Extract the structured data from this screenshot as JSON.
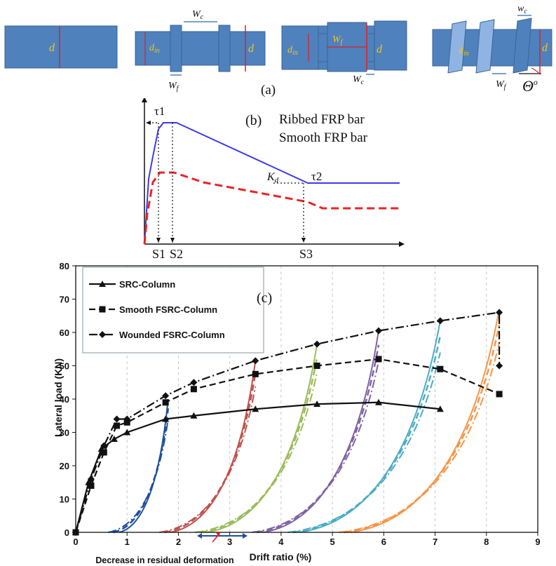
{
  "panel_a": {
    "caption": "(a)",
    "labels": {
      "d": "d",
      "din": "d",
      "din_sub": "in",
      "wc": "W",
      "wc_sub": "c",
      "wf": "W",
      "wf_sub": "f",
      "wc_lower": "w",
      "theta": "Θ",
      "theta_sup": "o"
    }
  },
  "panel_b": {
    "caption": "(b)",
    "legend": [
      "Ribbed FRP bar",
      "Smooth FRP bar"
    ],
    "tau1": "τ1",
    "tau2": "τ2",
    "kd": "K",
    "kd_sub": "d",
    "s_labels": [
      "S1",
      "S2",
      "S3"
    ]
  },
  "chart_data": {
    "type": "line",
    "panel_label": "(c)",
    "xlabel": "Drift ratio (%)",
    "ylabel": "Lateral load (KN)",
    "xlim": [
      0,
      9
    ],
    "ylim": [
      0,
      80
    ],
    "x_ticks": [
      "0",
      "1",
      "2",
      "3",
      "4",
      "5",
      "6",
      "7",
      "8",
      "9"
    ],
    "y_ticks": [
      "0",
      "10",
      "20",
      "30",
      "40",
      "50",
      "60",
      "70",
      "80"
    ],
    "grid": "vertical dashed",
    "legend_position": "top-left",
    "annotation": "Decrease in residual deformation",
    "series": [
      {
        "name": "SRC-Column",
        "marker": "triangle",
        "style": "solid",
        "x": [
          0,
          0.25,
          0.5,
          0.75,
          1.0,
          1.75,
          2.3,
          3.5,
          4.7,
          5.9,
          7.1
        ],
        "y": [
          0,
          15,
          25,
          28,
          30,
          34,
          35,
          37,
          38.5,
          39,
          37
        ]
      },
      {
        "name": "Smooth FSRC-Column",
        "marker": "square",
        "style": "dashed",
        "x": [
          0,
          0.3,
          0.55,
          0.8,
          1.0,
          1.75,
          2.3,
          3.5,
          4.7,
          5.9,
          7.1,
          8.25
        ],
        "y": [
          0,
          14,
          24,
          32,
          33,
          39,
          43,
          47.5,
          50,
          52,
          49,
          41.5
        ]
      },
      {
        "name": "Wounded FSRC-Column",
        "marker": "diamond",
        "style": "dash-dot",
        "x": [
          0,
          0.3,
          0.55,
          0.8,
          1.0,
          1.75,
          2.3,
          3.5,
          4.7,
          5.9,
          7.1,
          8.25,
          8.25
        ],
        "y": [
          0,
          16,
          26,
          34,
          34,
          41,
          45,
          51.5,
          56.5,
          60.5,
          63.5,
          66,
          50
        ]
      }
    ],
    "unloading_loops": [
      {
        "color": "#1f4e9c",
        "peak_x": 1.8,
        "peak_y": 40,
        "residual_x": 0.6
      },
      {
        "color": "#c0504d",
        "peak_x": 3.5,
        "peak_y": 51.5,
        "residual_x": 1.6
      },
      {
        "color": "#9bbb59",
        "peak_x": 4.7,
        "peak_y": 56.5,
        "residual_x": 2.3
      },
      {
        "color": "#8064a2",
        "peak_x": 5.9,
        "peak_y": 60.5,
        "residual_x": 3.4
      },
      {
        "color": "#4bacc6",
        "peak_x": 7.1,
        "peak_y": 63.5,
        "residual_x": 4.1
      },
      {
        "color": "#f79646",
        "peak_x": 8.25,
        "peak_y": 67,
        "residual_x": 5.1
      }
    ]
  }
}
